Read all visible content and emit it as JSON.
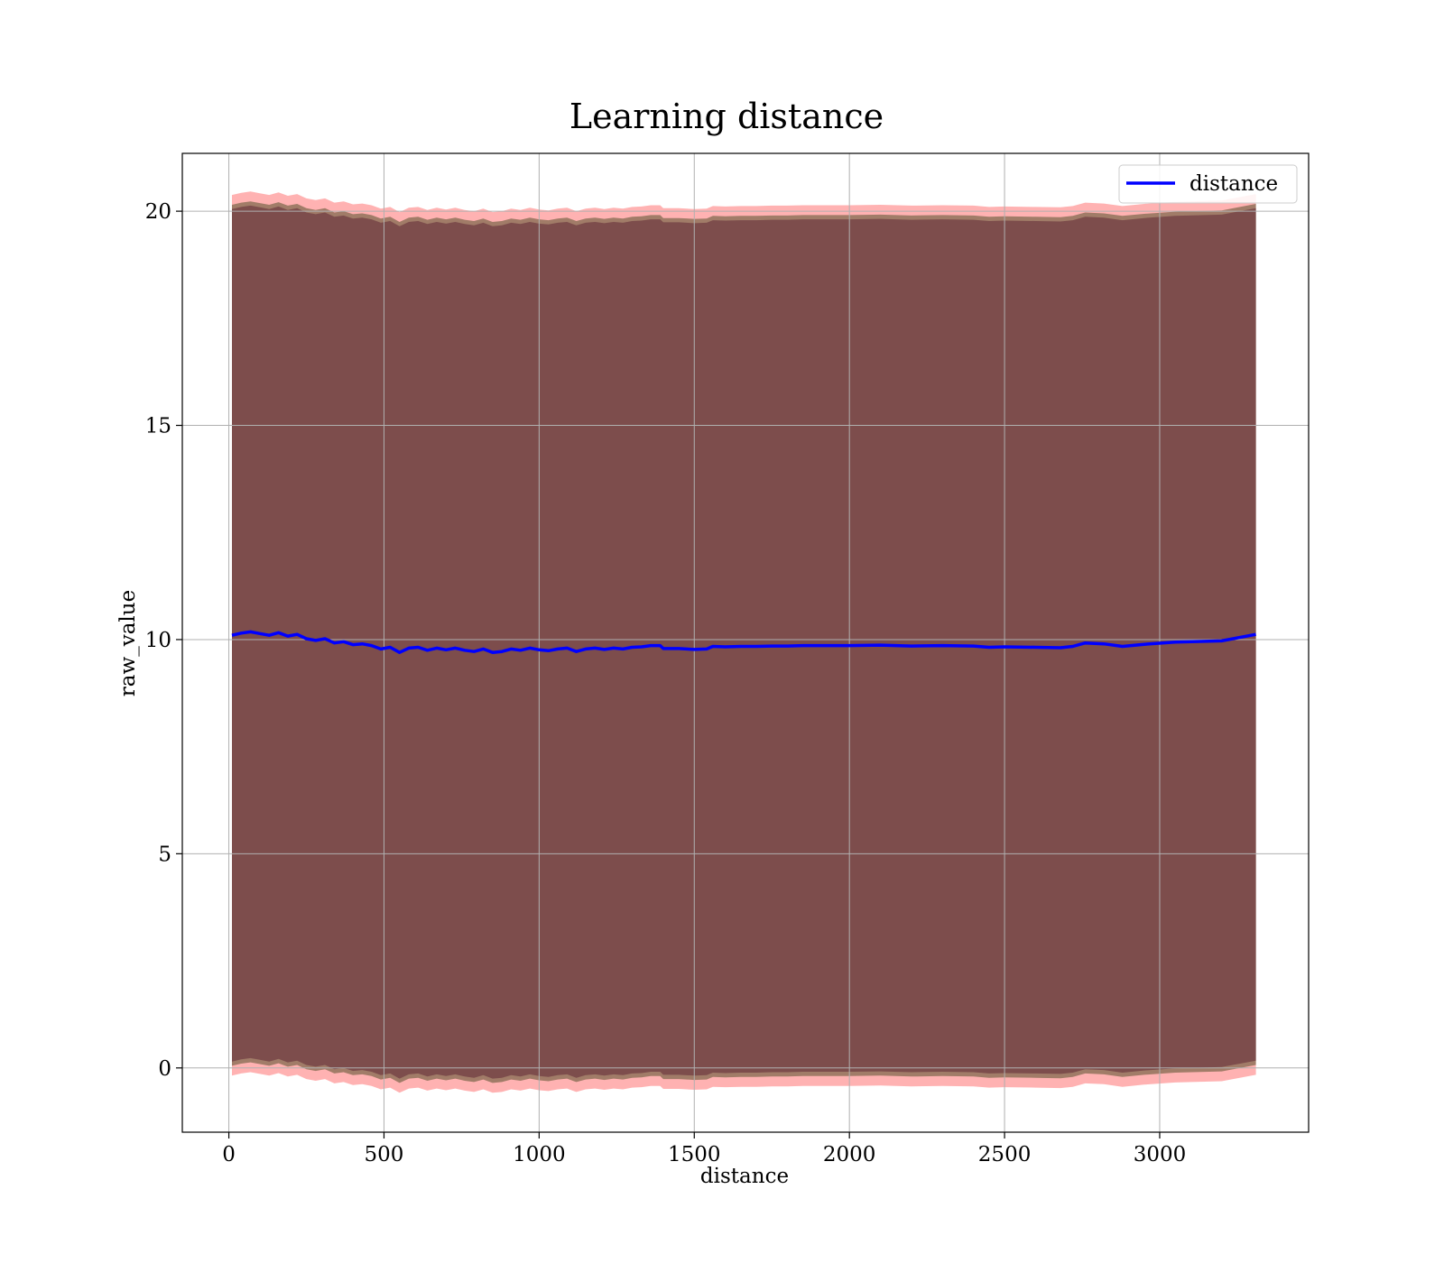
{
  "chart_data": {
    "type": "line",
    "title": "Learning distance",
    "xlabel": "distance",
    "ylabel": "raw_value",
    "xlim": [
      -150,
      3480
    ],
    "ylim": [
      -1.5,
      21.35
    ],
    "xticks": [
      0,
      500,
      1000,
      1500,
      2000,
      2500,
      3000
    ],
    "yticks": [
      0,
      5,
      10,
      15,
      20
    ],
    "grid": true,
    "legend_position": "top-right",
    "colors": {
      "line": "#0000ff",
      "outer_band": "#ff0000",
      "inner_band": "#2e3a0e",
      "core_band": "#5a1e30",
      "grid": "#b0b0b0"
    },
    "series": [
      {
        "name": "distance",
        "x": [
          10,
          40,
          70,
          100,
          130,
          160,
          190,
          220,
          250,
          280,
          310,
          340,
          370,
          400,
          430,
          460,
          490,
          520,
          550,
          580,
          610,
          640,
          670,
          700,
          730,
          760,
          790,
          820,
          850,
          880,
          910,
          940,
          970,
          1000,
          1030,
          1060,
          1090,
          1120,
          1150,
          1180,
          1210,
          1240,
          1270,
          1300,
          1330,
          1360,
          1390,
          1400,
          1450,
          1500,
          1540,
          1560,
          1600,
          1650,
          1700,
          1750,
          1800,
          1850,
          1900,
          1950,
          2000,
          2100,
          2200,
          2300,
          2400,
          2450,
          2500,
          2600,
          2680,
          2720,
          2760,
          2820,
          2880,
          2950,
          3050,
          3200,
          3310
        ],
        "y": [
          10.1,
          10.15,
          10.18,
          10.14,
          10.1,
          10.16,
          10.08,
          10.12,
          10.02,
          9.98,
          10.02,
          9.92,
          9.95,
          9.88,
          9.9,
          9.86,
          9.78,
          9.82,
          9.7,
          9.8,
          9.82,
          9.75,
          9.8,
          9.76,
          9.8,
          9.75,
          9.72,
          9.78,
          9.7,
          9.72,
          9.78,
          9.75,
          9.8,
          9.76,
          9.74,
          9.78,
          9.8,
          9.72,
          9.78,
          9.8,
          9.77,
          9.8,
          9.78,
          9.82,
          9.83,
          9.86,
          9.86,
          9.79,
          9.79,
          9.77,
          9.78,
          9.84,
          9.83,
          9.84,
          9.84,
          9.85,
          9.85,
          9.86,
          9.86,
          9.86,
          9.86,
          9.87,
          9.85,
          9.86,
          9.85,
          9.82,
          9.83,
          9.82,
          9.81,
          9.84,
          9.92,
          9.9,
          9.84,
          9.89,
          9.94,
          9.97,
          10.12
        ]
      }
    ],
    "bands": [
      {
        "role": "outer",
        "halfwidth": 10.28
      },
      {
        "role": "inner",
        "halfwidth": 10.05
      },
      {
        "role": "core",
        "halfwidth": 9.95
      }
    ]
  }
}
